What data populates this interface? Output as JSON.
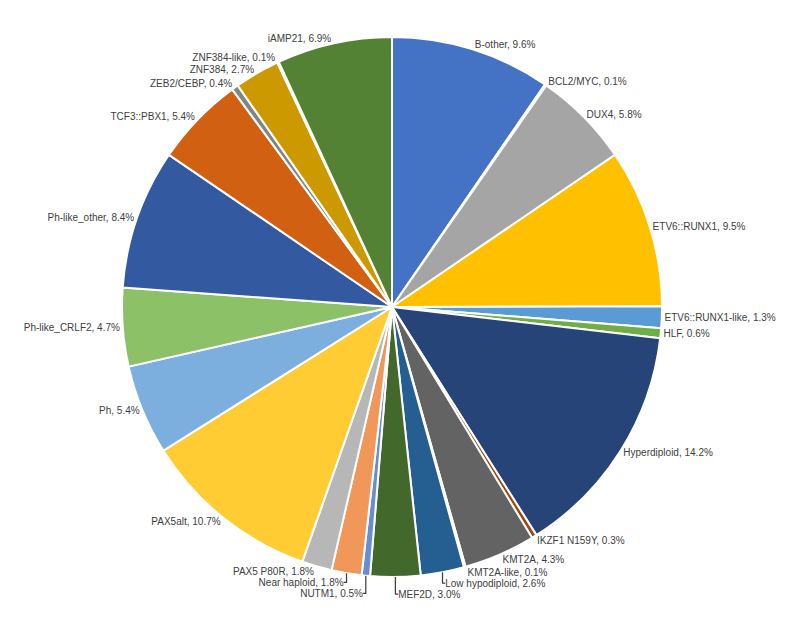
{
  "chart_data": {
    "type": "pie",
    "categories": [
      "B-other",
      "BCL2/MYC",
      "DUX4",
      "ETV6::RUNX1",
      "ETV6::RUNX1-like",
      "HLF",
      "Hyperdiploid",
      "IKZF1 N159Y",
      "KMT2A",
      "KMT2A-like",
      "Low hypodiploid",
      "MEF2D",
      "NUTM1",
      "Near haploid",
      "PAX5 P80R",
      "PAX5alt",
      "Ph",
      "Ph-like_CRLF2",
      "Ph-like_other",
      "TCF3::PBX1",
      "ZEB2/CEBP",
      "ZNF384",
      "ZNF384-like",
      "iAMP21"
    ],
    "values": [
      9.6,
      0.1,
      5.8,
      9.5,
      1.3,
      0.6,
      14.2,
      0.3,
      4.3,
      0.1,
      2.6,
      3.0,
      0.5,
      1.8,
      1.8,
      10.7,
      5.4,
      4.7,
      8.4,
      5.4,
      0.4,
      2.7,
      0.1,
      6.9
    ],
    "value_labels": [
      "B-other, 9.6%",
      "BCL2/MYC, 0.1%",
      "DUX4, 5.8%",
      "ETV6::RUNX1, 9.5%",
      "ETV6::RUNX1-like, 1.3%",
      "HLF, 0.6%",
      "Hyperdiploid, 14.2%",
      "IKZF1 N159Y, 0.3%",
      "KMT2A, 4.3%",
      "KMT2A-like, 0.1%",
      "Low hypodiploid, 2.6%",
      "MEF2D, 3.0%",
      "NUTM1, 0.5%",
      "Near haploid, 1.8%",
      "PAX5 P80R, 1.8%",
      "PAX5alt, 10.7%",
      "Ph, 5.4%",
      "Ph-like_CRLF2, 4.7%",
      "Ph-like_other, 8.4%",
      "TCF3::PBX1, 5.4%",
      "ZEB2/CEBP, 0.4%",
      "ZNF384, 2.7%",
      "ZNF384-like, 0.1%",
      "iAMP21, 6.9%"
    ],
    "colors": [
      "#4472C4",
      "#ED7D31",
      "#A5A5A5",
      "#FFC000",
      "#5B9BD5",
      "#70AD47",
      "#264478",
      "#9E480E",
      "#636363",
      "#997300",
      "#255E91",
      "#43682B",
      "#698ED0",
      "#F1975A",
      "#B7B7B7",
      "#FFCD33",
      "#7CAFDD",
      "#8CC168",
      "#335AA1",
      "#D26012",
      "#848484",
      "#CC9A00",
      "#2D78BF",
      "#548235"
    ],
    "data_labels": true
  }
}
